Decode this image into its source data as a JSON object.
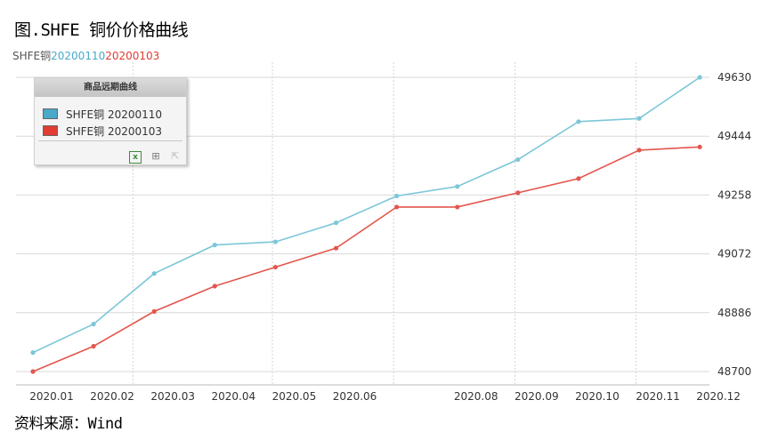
{
  "title": "图.SHFE 铜价价格曲线",
  "top_legend": {
    "base": "SHFE铜",
    "series_a": "20200110",
    "series_b": "20200103"
  },
  "source": "资料来源：Wind",
  "legend_box": {
    "header": "商品远期曲线",
    "items": [
      {
        "label": "SHFE铜 20200110",
        "color": "#4aa8c9"
      },
      {
        "label": "SHFE铜 20200103",
        "color": "#e03c31"
      }
    ]
  },
  "colors": {
    "series_a": "#7cc7d8",
    "series_b": "#e3564d",
    "top_a": "#4aa8c9",
    "top_b": "#e03c31"
  },
  "chart_data": {
    "type": "line",
    "x": [
      "2020.01",
      "2020.02",
      "2020.03",
      "2020.04",
      "2020.05",
      "2020.06",
      "2020.07",
      "2020.08",
      "2020.09",
      "2020.10",
      "2020.11",
      "2020.12"
    ],
    "x_tick_labels": [
      "2020.01",
      "2020.02",
      "2020.03",
      "2020.04",
      "2020.05",
      "2020.06",
      "",
      "2020.08",
      "2020.09",
      "2020.10",
      "2020.11",
      "2020.12"
    ],
    "series": [
      {
        "name": "SHFE铜 20200110",
        "values": [
          48760,
          48850,
          49010,
          49100,
          49110,
          49170,
          49255,
          49285,
          49370,
          49490,
          49500,
          49630
        ]
      },
      {
        "name": "SHFE铜 20200103",
        "values": [
          48700,
          48780,
          48890,
          48970,
          49030,
          49090,
          49220,
          49220,
          49265,
          49310,
          49400,
          49410
        ]
      }
    ],
    "y_ticks": [
      48700,
      48886,
      49072,
      49258,
      49444,
      49630
    ],
    "ylim": [
      48700,
      49630
    ],
    "grid": true,
    "legend": "top-left"
  }
}
